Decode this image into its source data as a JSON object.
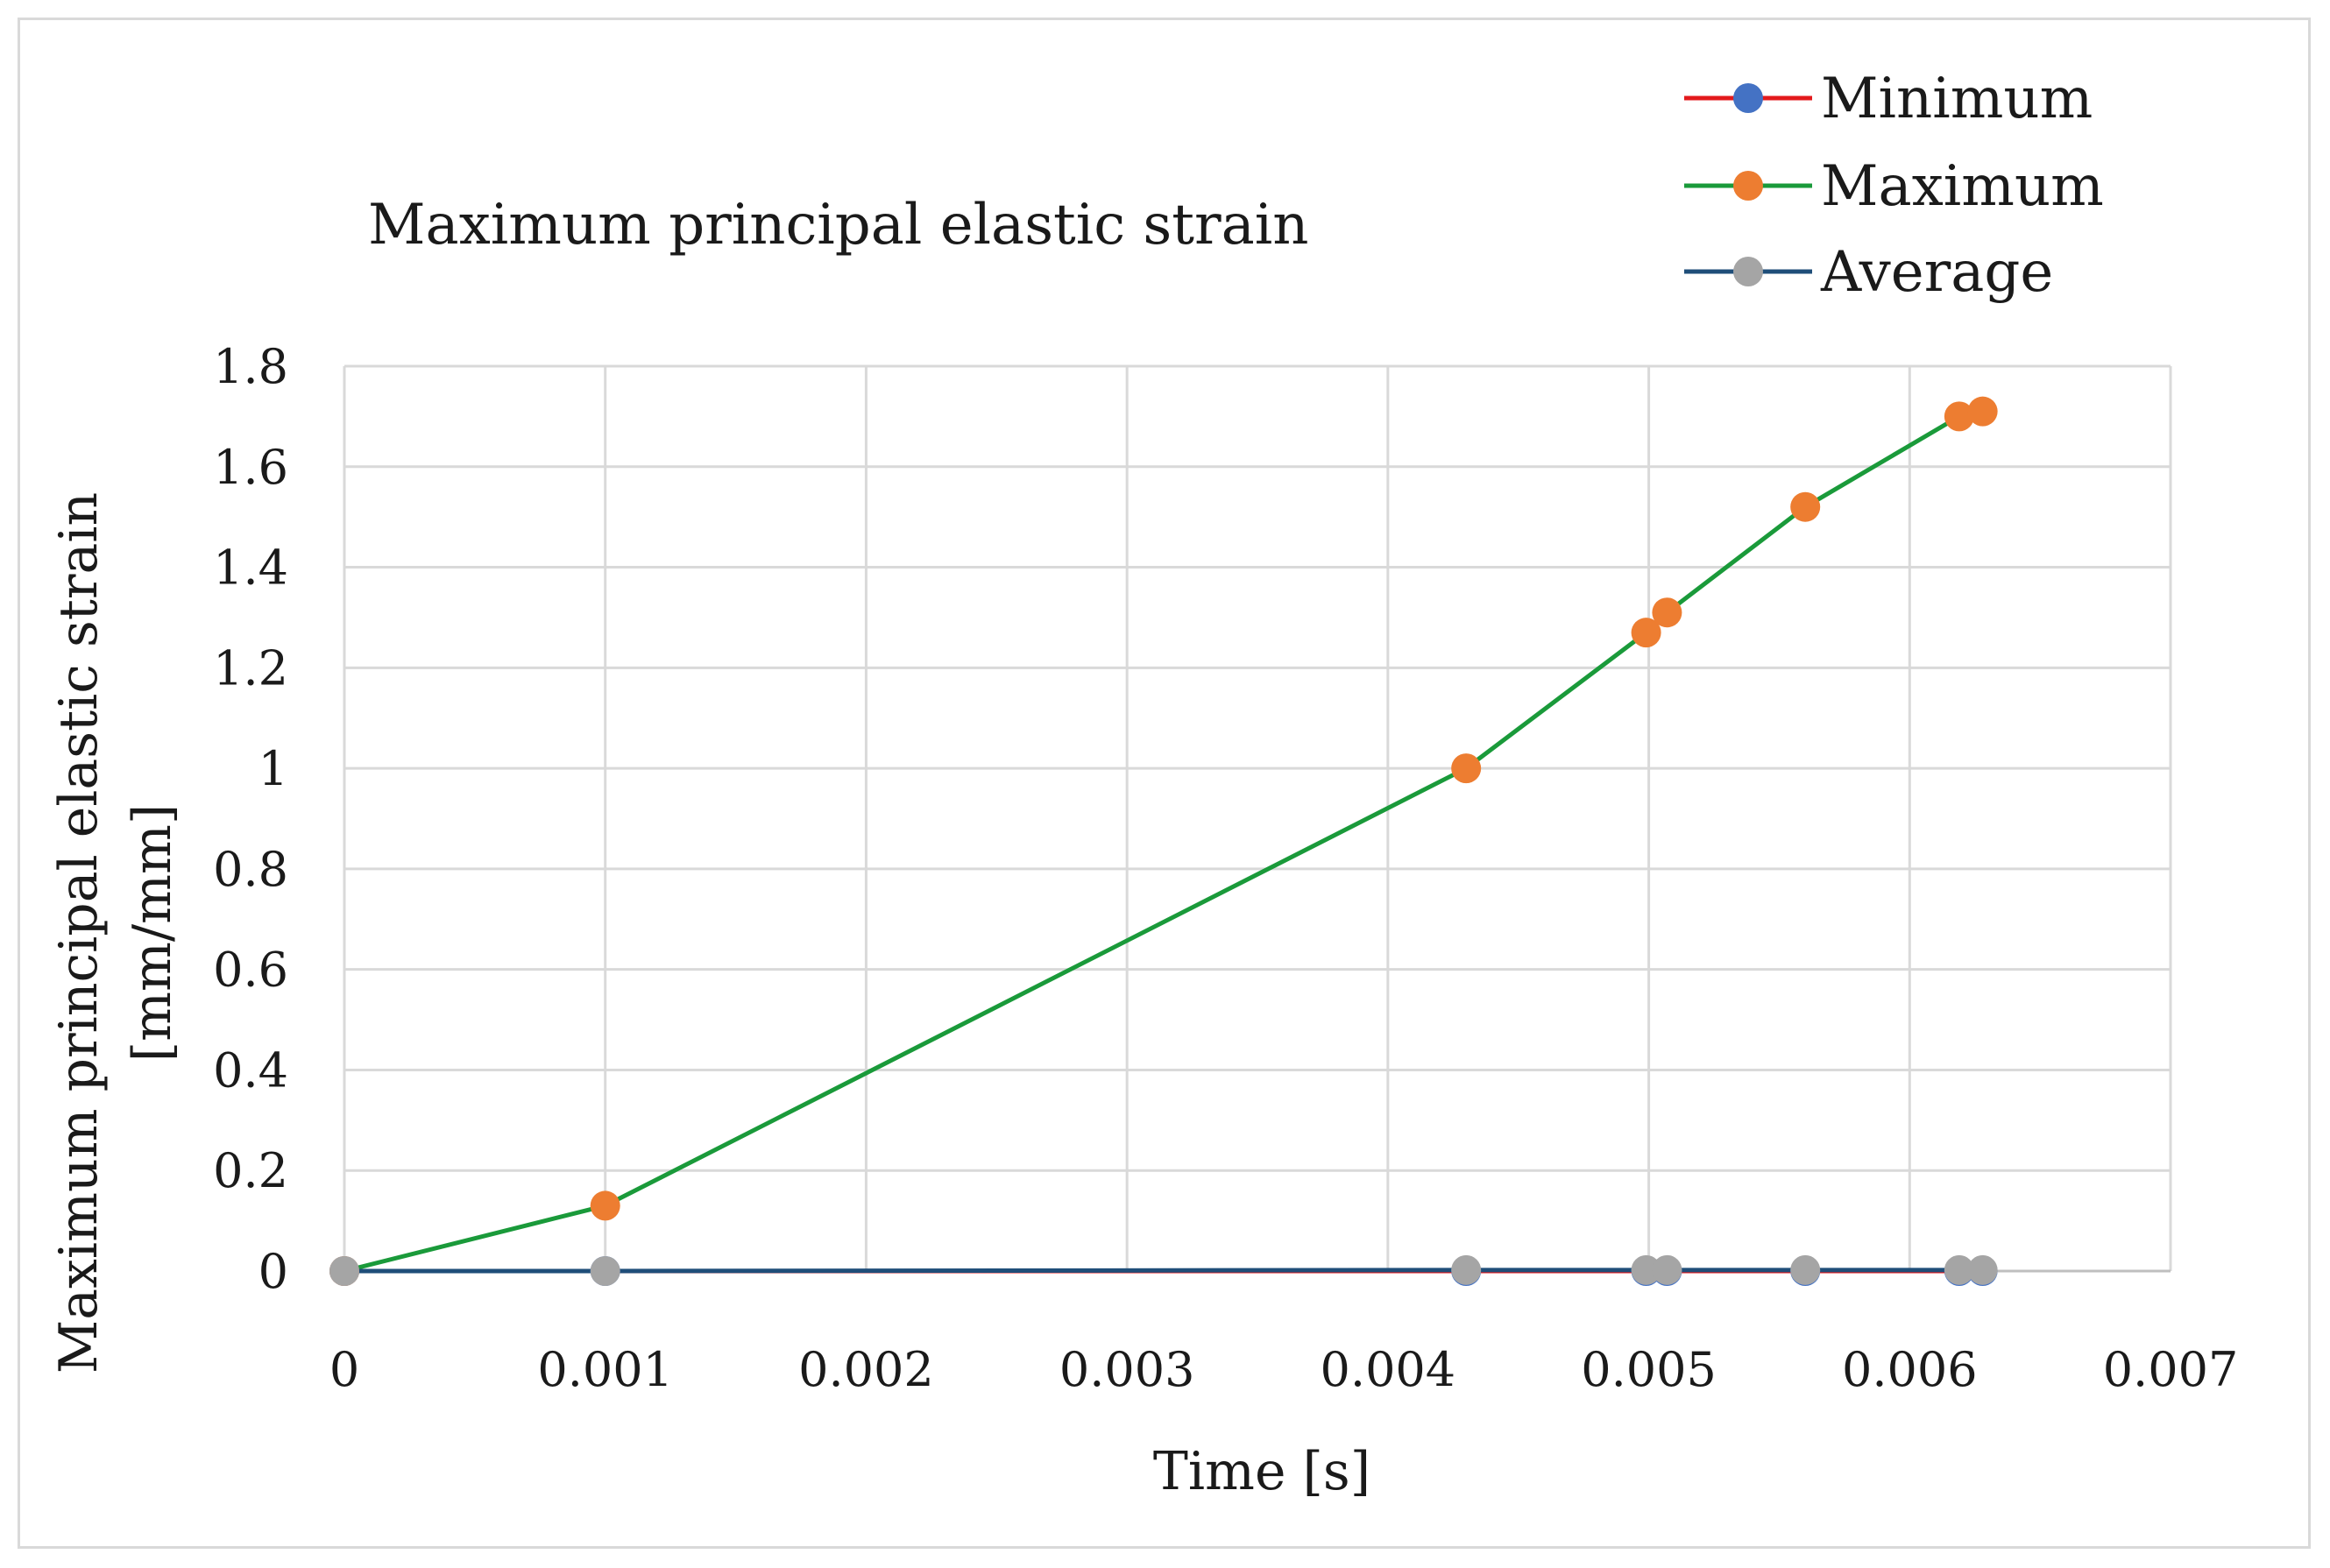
{
  "chart_data": {
    "type": "line",
    "title": "Maximum principal elastic strain",
    "xlabel": "Time [s]",
    "ylabel_lines": [
      "Maximum principal elastic strain",
      "[mm/mm]"
    ],
    "xlim": [
      0,
      0.007
    ],
    "ylim": [
      0,
      1.8
    ],
    "x_ticks": [
      0,
      0.001,
      0.002,
      0.003,
      0.004,
      0.005,
      0.006,
      0.007
    ],
    "x_tick_labels": [
      "0",
      "0.001",
      "0.002",
      "0.003",
      "0.004",
      "0.005",
      "0.006",
      "0.007"
    ],
    "y_ticks": [
      0,
      0.2,
      0.4,
      0.6,
      0.8,
      1.0,
      1.2,
      1.4,
      1.6,
      1.8
    ],
    "y_tick_labels": [
      "0",
      "0.2",
      "0.4",
      "0.6",
      "0.8",
      "1",
      "1.2",
      "1.4",
      "1.6",
      "1.8"
    ],
    "grid": true,
    "legend_position": "top-right",
    "series": [
      {
        "name": "Minimum",
        "line_color": "#e31a1c",
        "marker_color": "#4472c4",
        "x": [
          0,
          0.001,
          0.0043,
          0.00499,
          0.00507,
          0.0056,
          0.00619,
          0.00628
        ],
        "y": [
          0,
          0,
          0,
          0,
          0,
          0,
          0,
          0
        ]
      },
      {
        "name": "Maximum",
        "line_color": "#1a9a3a",
        "marker_color": "#ed7d31",
        "x": [
          0,
          0.001,
          0.0043,
          0.00499,
          0.00507,
          0.0056,
          0.00619,
          0.00628
        ],
        "y": [
          0,
          0.13,
          1.0,
          1.27,
          1.31,
          1.52,
          1.7,
          1.71
        ]
      },
      {
        "name": "Average",
        "line_color": "#1f4e79",
        "marker_color": "#a5a5a5",
        "x": [
          0,
          0.001,
          0.0043,
          0.00499,
          0.00507,
          0.0056,
          0.00619,
          0.00628
        ],
        "y": [
          0,
          0,
          0.002,
          0.002,
          0.002,
          0.002,
          0.002,
          0.002
        ]
      }
    ]
  }
}
